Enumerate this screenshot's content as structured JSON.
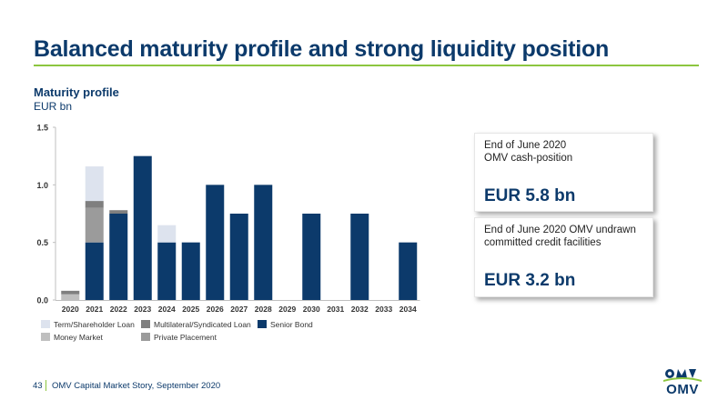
{
  "header": {
    "title": "Balanced maturity profile and strong liquidity position"
  },
  "chart_header": {
    "title": "Maturity profile",
    "unit": "EUR bn"
  },
  "colors": {
    "term_loan": "#dde3ee",
    "multilateral": "#7f7f7f",
    "senior_bond": "#0c3a6b",
    "money_market": "#bfbfbf",
    "private_placement": "#9b9b9b",
    "title": "#0c3a6b",
    "accent_rule": "#8cc63f"
  },
  "chart_data": {
    "type": "bar",
    "stacked": true,
    "categories": [
      "2020",
      "2021",
      "2022",
      "2023",
      "2024",
      "2025",
      "2026",
      "2027",
      "2028",
      "2029",
      "2030",
      "2031",
      "2032",
      "2033",
      "2034"
    ],
    "series": [
      {
        "name": "Senior Bond",
        "key": "senior_bond",
        "values": [
          0,
          0.5,
          0.75,
          1.25,
          0.5,
          0.5,
          1.0,
          0.75,
          1.0,
          0,
          0.75,
          0,
          0.75,
          0,
          0.5
        ]
      },
      {
        "name": "Private Placement",
        "key": "private_placement",
        "values": [
          0,
          0.3,
          0,
          0,
          0,
          0,
          0,
          0,
          0,
          0,
          0,
          0,
          0,
          0,
          0
        ]
      },
      {
        "name": "Money Market",
        "key": "money_market",
        "values": [
          0.05,
          0,
          0,
          0,
          0,
          0,
          0,
          0,
          0,
          0,
          0,
          0,
          0,
          0,
          0
        ]
      },
      {
        "name": "Multilateral/Syndicated Loan",
        "key": "multilateral",
        "values": [
          0.03,
          0.06,
          0.03,
          0,
          0,
          0,
          0,
          0,
          0,
          0,
          0,
          0,
          0,
          0,
          0
        ]
      },
      {
        "name": "Term/Shareholder Loan",
        "key": "term_loan",
        "values": [
          0,
          0.3,
          0,
          0,
          0.15,
          0,
          0,
          0,
          0,
          0,
          0,
          0,
          0,
          0,
          0
        ]
      }
    ],
    "legend": [
      {
        "name": "Term/Shareholder Loan",
        "key": "term_loan"
      },
      {
        "name": "Multilateral/Syndicated Loan",
        "key": "multilateral"
      },
      {
        "name": "Senior Bond",
        "key": "senior_bond"
      },
      {
        "name": "Money Market",
        "key": "money_market"
      },
      {
        "name": "Private Placement",
        "key": "private_placement"
      }
    ],
    "y_ticks": [
      "0.0",
      "0.5",
      "1.0",
      "1.5"
    ],
    "ylim": [
      0,
      1.5
    ],
    "legend_position": "bottom",
    "grid": false
  },
  "cards": [
    {
      "text": "End of June 2020\nOMV cash-position",
      "value": "EUR 5.8 bn"
    },
    {
      "text": "End of June 2020 OMV undrawn committed credit facilities",
      "value": "EUR 3.2 bn"
    }
  ],
  "footer": {
    "page_number": "43",
    "text": "OMV Capital Market Story, September 2020"
  },
  "logo": {
    "word": "OMV"
  }
}
